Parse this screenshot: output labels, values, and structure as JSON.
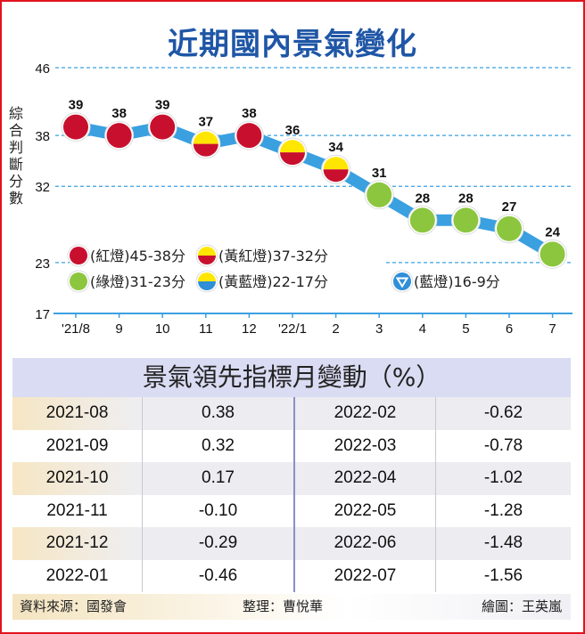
{
  "chart_data": {
    "type": "line",
    "title": "近期國內景氣變化",
    "ylabel": "綜合判斷分數",
    "ylim": [
      17,
      46
    ],
    "yticks": [
      46,
      38,
      32,
      23,
      17
    ],
    "categories": [
      "'21/8",
      "9",
      "10",
      "11",
      "12",
      "'22/1",
      "2",
      "3",
      "4",
      "5",
      "6",
      "7"
    ],
    "values": [
      39,
      38,
      39,
      37,
      38,
      36,
      34,
      31,
      28,
      28,
      27,
      24
    ],
    "grid": "dashed horizontal",
    "colors": {
      "line": "#3aa0e0",
      "red": "#c8102e",
      "yellow": "#ffe600",
      "green": "#8cc63f",
      "blue": "#2f8fd8",
      "grid": "#3aa0e0"
    },
    "legend": [
      {
        "label": "(紅燈)45-38分",
        "light": "red"
      },
      {
        "label": "(黃紅燈)37-32分",
        "light": "yellow-red"
      },
      {
        "label": "(綠燈)31-23分",
        "light": "green"
      },
      {
        "label": "(黃藍燈)22-17分",
        "light": "yellow-blue"
      },
      {
        "label": "(藍燈)16-9分",
        "light": "blue"
      }
    ]
  },
  "table": {
    "title": "景氣領先指標月變動（%）",
    "rows": [
      [
        "2021-08",
        "0.38",
        "2022-02",
        "-0.62"
      ],
      [
        "2021-09",
        "0.32",
        "2022-03",
        "-0.78"
      ],
      [
        "2021-10",
        "0.17",
        "2022-04",
        "-1.02"
      ],
      [
        "2021-11",
        "-0.10",
        "2022-05",
        "-1.28"
      ],
      [
        "2021-12",
        "-0.29",
        "2022-06",
        "-1.48"
      ],
      [
        "2022-01",
        "-0.46",
        "2022-07",
        "-1.56"
      ]
    ]
  },
  "footer": {
    "source": "資料來源：國發會",
    "editor": "整理：曹悅華",
    "artist": "繪圖：王英嵐"
  }
}
